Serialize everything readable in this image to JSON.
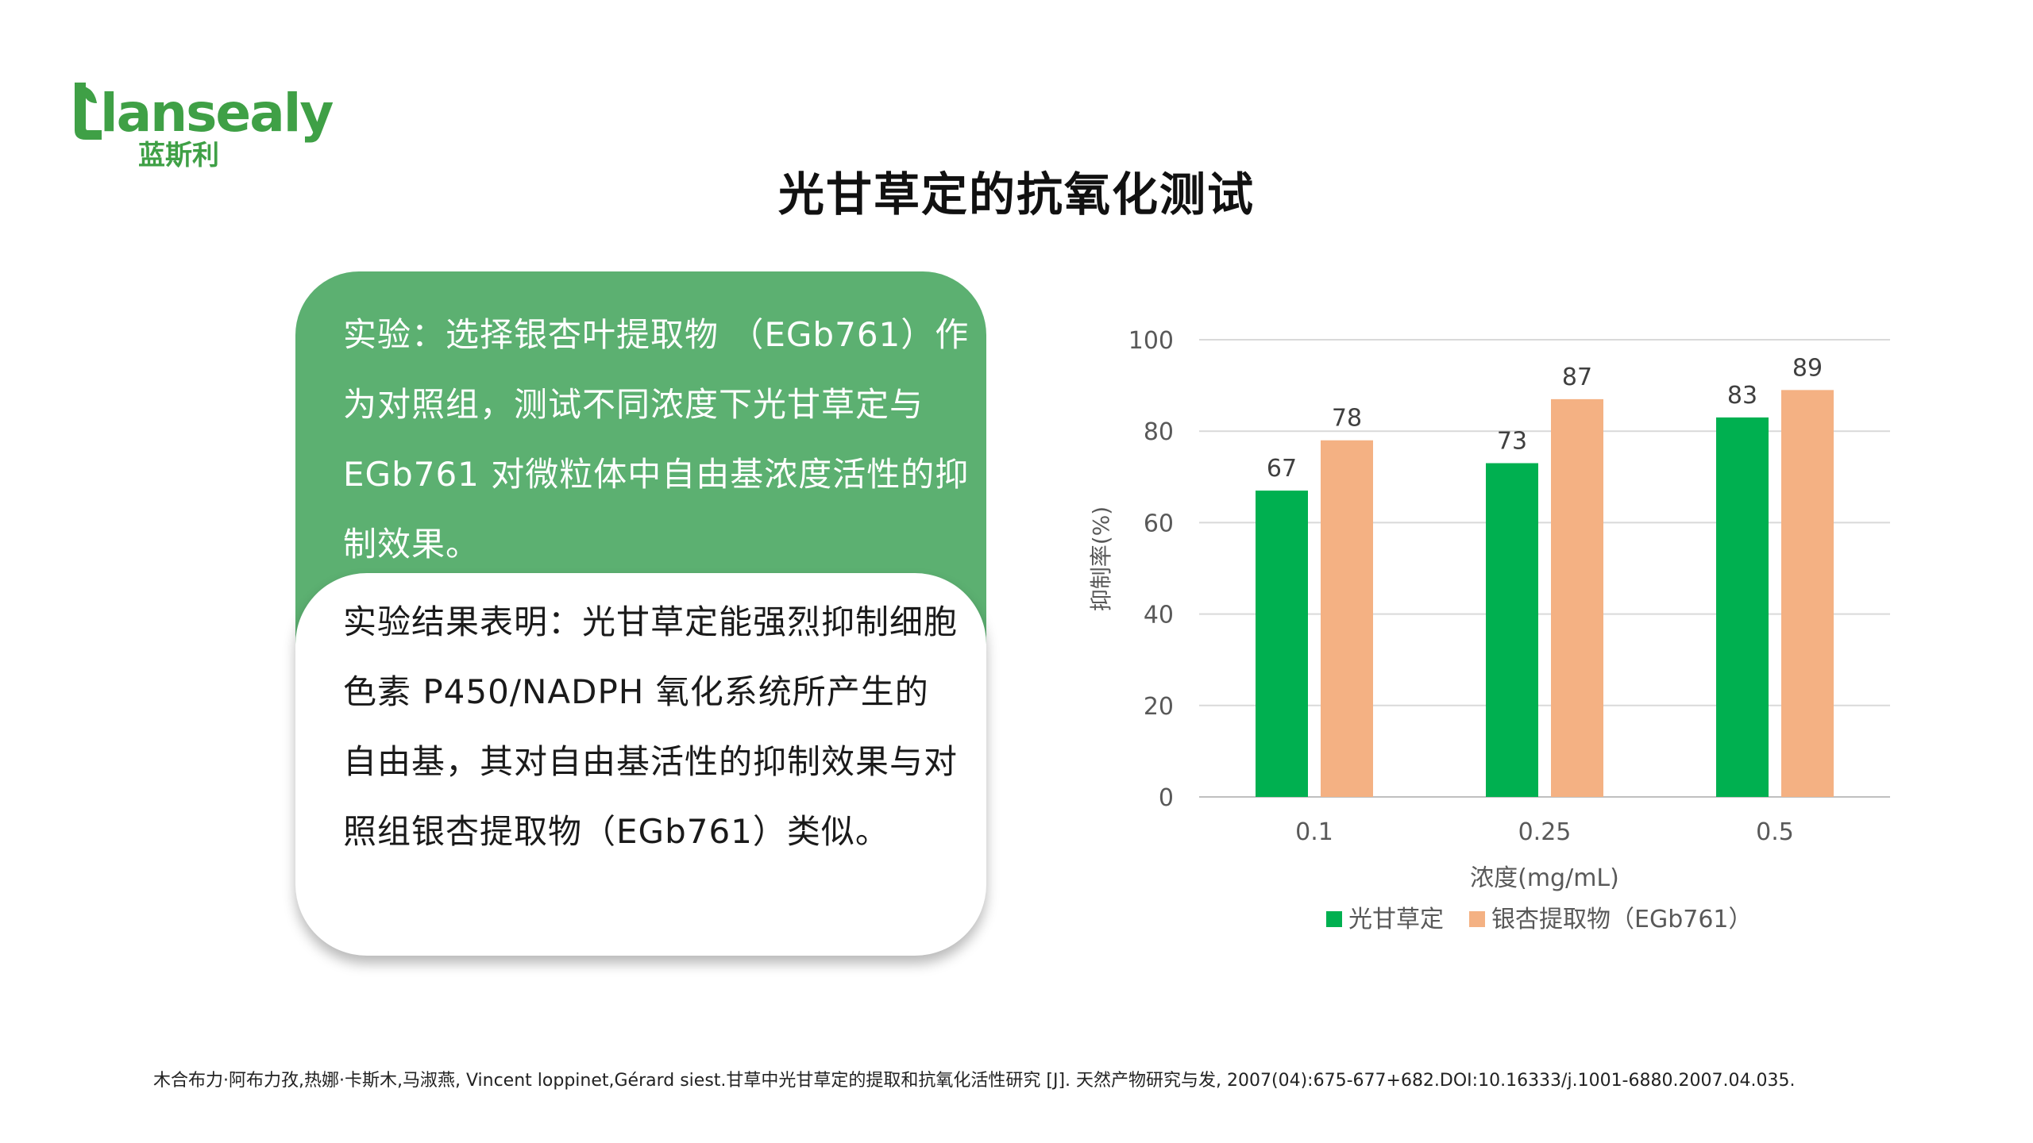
{
  "logo": {
    "text": "lansealy",
    "sub": "蓝斯利"
  },
  "title": "光甘草定的抗氧化测试",
  "experiment": {
    "text": "实验：选择银杏叶提取物 （EGb761）作为对照组，测试不同浓度下光甘草定与 EGb761 对微粒体中自由基浓度活性的抑制效果。"
  },
  "result": {
    "text": "实验结果表明：光甘草定能强烈抑制细胞色素 P450/NADPH 氧化系统所产生的自由基，其对自由基活性的抑制效果与对照组银杏提取物（EGb761）类似。"
  },
  "colors": {
    "brand": "#3fa046",
    "card_green": "#5cb071",
    "series1": "#00b050",
    "series2": "#f4b183"
  },
  "chart_data": {
    "type": "bar",
    "categories": [
      "0.1",
      "0.25",
      "0.5"
    ],
    "series": [
      {
        "name": "光甘草定",
        "values": [
          67,
          73,
          83
        ],
        "color": "#00b050"
      },
      {
        "name": "银杏提取物（EGb761）",
        "values": [
          78,
          87,
          89
        ],
        "color": "#f4b183"
      }
    ],
    "xlabel": "浓度(mg/mL)",
    "ylabel": "抑制率(%)",
    "ylim": [
      0,
      100
    ],
    "yticks": [
      0,
      20,
      40,
      60,
      80,
      100
    ],
    "grid": true,
    "legend": "bottom",
    "data_labels": true
  },
  "citation": "木合布力·阿布力孜,热娜·卡斯木,马淑燕, Vincent loppinet,Gérard siest.甘草中光甘草定的提取和抗氧化活性研究 [J]. 天然产物研究与发, 2007(04):675-677+682.DOI:10.16333/j.1001-6880.2007.04.035."
}
